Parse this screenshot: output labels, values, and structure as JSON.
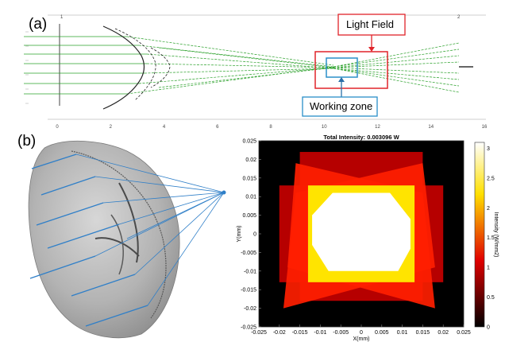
{
  "figure": {
    "panel_a_label": "(a)",
    "panel_b_label": "(b)",
    "callouts": {
      "light_field": "Light Field",
      "working_zone": "Working zone"
    },
    "ray_top_ticks": [
      "1",
      "2"
    ],
    "ray_x_ticks": [
      "0",
      "2",
      "4",
      "6",
      "8",
      "10",
      "12",
      "14",
      "16"
    ]
  },
  "colors": {
    "rays": "#2aa02a",
    "light_field_box": "#e0242a",
    "working_zone_box": "#2a8fc8",
    "mirror": "#9a9a9a",
    "mirror_rays": "#2f7fc8"
  },
  "chart_data": {
    "type": "heatmap",
    "title": "Total Intensity: 0.003096 W",
    "xlabel": "X(mm)",
    "ylabel": "Y(mm)",
    "colorbar_label": "Intensity (W/mm2)",
    "xlim": [
      -0.025,
      0.025
    ],
    "ylim": [
      -0.025,
      0.025
    ],
    "x_ticks": [
      "-0.025",
      "-0.02",
      "-0.015",
      "-0.01",
      "-0.005",
      "0",
      "0.005",
      "0.01",
      "0.015",
      "0.02",
      "0.025"
    ],
    "y_ticks": [
      "0.025",
      "0.02",
      "0.015",
      "0.01",
      "0.005",
      "0",
      "-0.005",
      "-0.01",
      "-0.015",
      "-0.02",
      "-0.025"
    ],
    "colorbar_ticks": [
      "3",
      "2.5",
      "2",
      "1.5",
      "1",
      "0.5",
      "0"
    ],
    "colorbar_range": [
      0,
      3.1
    ],
    "colormap": "hot",
    "layers": [
      {
        "shape": "rect",
        "x": [
          -0.015,
          0.015
        ],
        "y": [
          -0.018,
          0.022
        ],
        "intensity": 0.9
      },
      {
        "shape": "rect",
        "x": [
          -0.02,
          0.02
        ],
        "y": [
          -0.013,
          0.013
        ],
        "intensity": 0.9
      },
      {
        "shape": "polygon",
        "points": [
          [
            -0.016,
            0.019
          ],
          [
            0.015,
            0.011
          ],
          [
            0.018,
            -0.02
          ],
          [
            -0.018,
            -0.009
          ]
        ],
        "intensity": 1.3
      },
      {
        "shape": "polygon",
        "points": [
          [
            0.015,
            0.019
          ],
          [
            -0.016,
            0.011
          ],
          [
            -0.019,
            -0.02
          ],
          [
            0.018,
            -0.009
          ]
        ],
        "intensity": 1.3
      },
      {
        "shape": "rect",
        "x": [
          -0.013,
          0.013
        ],
        "y": [
          -0.013,
          0.013
        ],
        "intensity": 2.2
      },
      {
        "shape": "polygon",
        "points": [
          [
            -0.007,
            0.011
          ],
          [
            0.007,
            0.011
          ],
          [
            0.012,
            0.004
          ],
          [
            0.012,
            -0.004
          ],
          [
            0.009,
            -0.01
          ],
          [
            -0.008,
            -0.01
          ],
          [
            -0.012,
            -0.003
          ],
          [
            -0.012,
            0.005
          ]
        ],
        "intensity": 3.1
      }
    ]
  }
}
